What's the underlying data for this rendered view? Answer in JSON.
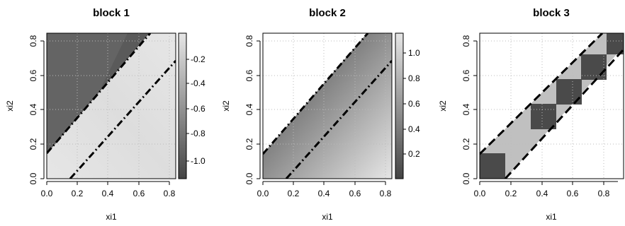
{
  "chart_data": [
    {
      "type": "heatmap",
      "title": "block 1",
      "xlabel": "xi1",
      "ylabel": "xi2",
      "xlim": [
        0,
        0.84
      ],
      "ylim": [
        0,
        0.84
      ],
      "x_ticks": [
        "0.0",
        "0.2",
        "0.4",
        "0.6",
        "0.8"
      ],
      "y_ticks": [
        "0.0",
        "0.2",
        "0.4",
        "0.6",
        "0.8"
      ],
      "grid": true,
      "band_offset": 0.15,
      "band_lines": [
        {
          "style": "dash-dot",
          "intercept": 0.15,
          "slope": 1
        },
        {
          "style": "dash-dot",
          "intercept": -0.15,
          "slope": 1
        }
      ],
      "colorbar": {
        "min": -1.2,
        "max": 0.0,
        "ticks": [
          "-1.0",
          "-0.8",
          "-0.6",
          "-0.4",
          "-0.2"
        ],
        "low_color": "#444444",
        "high_color": "#e6e6e6"
      },
      "value_range": [
        -1.18,
        0.0
      ]
    },
    {
      "type": "heatmap",
      "title": "block 2",
      "xlabel": "xi1",
      "ylabel": "xi2",
      "xlim": [
        0,
        0.84
      ],
      "ylim": [
        0,
        0.84
      ],
      "x_ticks": [
        "0.0",
        "0.2",
        "0.4",
        "0.6",
        "0.8"
      ],
      "y_ticks": [
        "0.0",
        "0.2",
        "0.4",
        "0.6",
        "0.8"
      ],
      "grid": true,
      "band_offset": 0.15,
      "band_lines": [
        {
          "style": "dash-dot",
          "intercept": 0.15,
          "slope": 1
        },
        {
          "style": "dash-dot",
          "intercept": -0.15,
          "slope": 1
        }
      ],
      "colorbar": {
        "min": 0.0,
        "max": 1.15,
        "ticks": [
          "0.2",
          "0.4",
          "0.6",
          "0.8",
          "1.0"
        ],
        "low_color": "#444444",
        "high_color": "#e6e6e6"
      },
      "value_range": [
        0.02,
        1.15
      ]
    },
    {
      "type": "heatmap",
      "title": "block 3",
      "xlabel": "xi1",
      "ylabel": "xi2",
      "xlim": [
        0,
        0.84
      ],
      "ylim": [
        0,
        0.84
      ],
      "x_ticks": [
        "0.0",
        "0.2",
        "0.4",
        "0.6",
        "0.8"
      ],
      "y_ticks": [
        "0.0",
        "0.2",
        "0.4",
        "0.6",
        "0.8"
      ],
      "grid": true,
      "band_offset": 0.15,
      "band_lines": [
        {
          "style": "dashed",
          "intercept": 0.15,
          "slope": 1
        },
        {
          "style": "dashed",
          "intercept": -0.15,
          "slope": 1
        }
      ],
      "checker_cell": 0.165,
      "checker_colors": {
        "dark": "#4a4a4a",
        "light": "#c0c0c0"
      }
    }
  ]
}
